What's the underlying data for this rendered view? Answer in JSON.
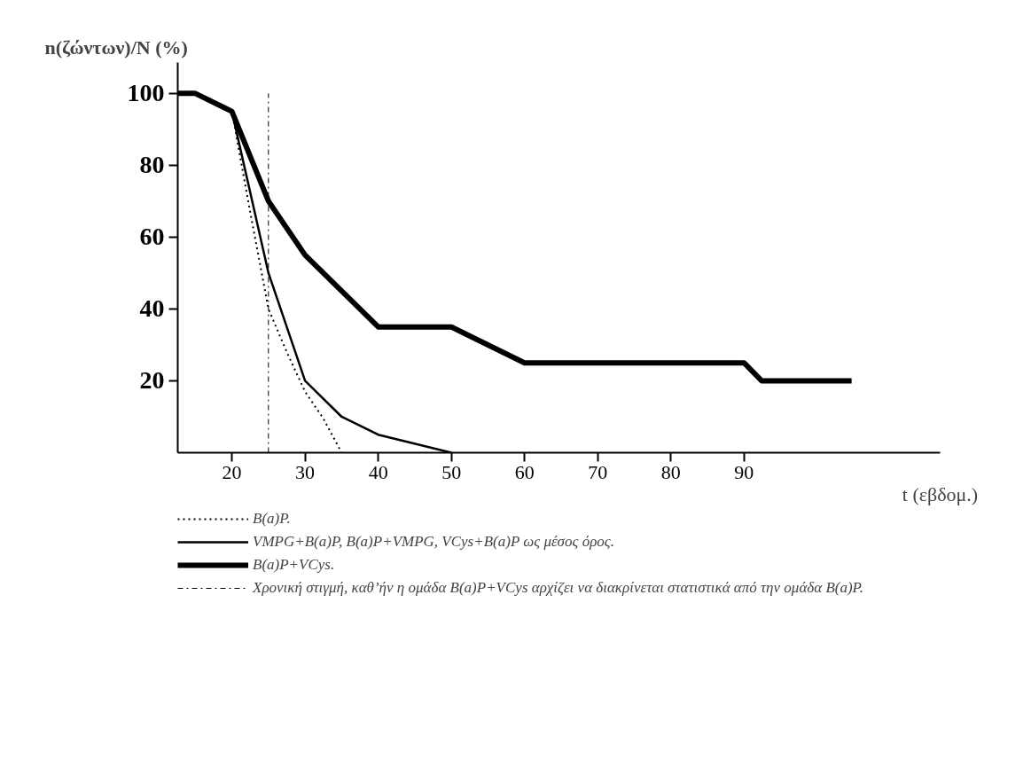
{
  "chart_data": {
    "type": "line",
    "ylabel": "n(ζώντων)/N (%)",
    "xlabel": "t (εβδομ.)",
    "xlim": [
      12.6,
      116.8
    ],
    "ylim": [
      0,
      108.6
    ],
    "xticks": [
      20,
      30,
      40,
      50,
      60,
      70,
      80,
      90
    ],
    "yticks": [
      20,
      40,
      60,
      80,
      100
    ],
    "grid": false,
    "legend": "bottom",
    "series": [
      {
        "name": "B(a)P.",
        "color": "#000000",
        "line_style": "dotted",
        "x": [
          20,
          22.5,
          25,
          27.5,
          30,
          32.5,
          35
        ],
        "values": [
          95,
          67,
          40,
          28,
          17,
          9.5,
          0
        ]
      },
      {
        "name": "VMPG+B(a)P, B(a)P+VMPG, VCys+B(a)P ως μέσος όρος.",
        "color": "#000000",
        "line_style": "solid",
        "x": [
          20,
          25,
          30,
          35,
          40,
          50
        ],
        "values": [
          95,
          50,
          20,
          10,
          5,
          0
        ]
      },
      {
        "name": "B(a)P+VCys.",
        "color": "#000000",
        "line_style": "solid",
        "x": [
          12.6,
          15,
          20,
          25,
          30,
          40,
          50,
          60,
          90,
          92.4,
          104.7
        ],
        "values": [
          100,
          100,
          95,
          70,
          55,
          35,
          35,
          25,
          25,
          20,
          20
        ]
      }
    ],
    "ref_lines": [
      {
        "axis": "x",
        "value": 25,
        "label": "Χρονική στιγμή, καθ’ήν η ομάδα B(a)P+VCys αρχίζει να διακρίνεται στατιστικά από την ομάδα B(a)P.",
        "color": "#000000",
        "line_style": "dashdot"
      }
    ]
  }
}
